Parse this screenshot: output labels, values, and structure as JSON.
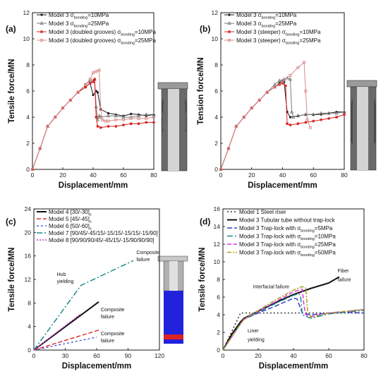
{
  "chart_data": [
    {
      "panel": "(a)",
      "type": "line",
      "xlabel": "Displacement/mm",
      "ylabel": "Tensile force/MN",
      "xlim": [
        0,
        80
      ],
      "ylim": [
        0,
        12
      ],
      "xticks": [
        0,
        20,
        40,
        60,
        80
      ],
      "yticks": [
        0,
        2,
        4,
        6,
        8,
        10,
        12
      ],
      "legend_position": "top-left",
      "series": [
        {
          "name": "Model 3 σbonding=10MPa",
          "legend": {
            "main": "Model 3 σ",
            "sub": "bonding",
            "tail": "=10MPa"
          },
          "color": "#1a1a1a",
          "marker": "dot",
          "x": [
            0,
            5,
            10,
            15,
            20,
            25,
            30,
            35,
            38,
            40,
            42,
            43,
            45,
            50,
            55,
            60,
            65,
            70,
            75,
            80
          ],
          "y": [
            0,
            1.6,
            3.3,
            4.0,
            4.7,
            5.3,
            5.9,
            6.3,
            6.6,
            5.7,
            6.0,
            5.9,
            4.6,
            4.3,
            4.2,
            4.1,
            4.25,
            4.2,
            4.1,
            4.2
          ]
        },
        {
          "name": "Model 3 σbonding=25MPa",
          "legend": {
            "main": "Model 3 σ",
            "sub": "bonding",
            "tail": "=25MPa"
          },
          "color": "#7a7a7a",
          "marker": "triangle",
          "x": [
            0,
            5,
            10,
            15,
            20,
            25,
            30,
            35,
            38,
            41,
            42,
            43,
            44,
            45,
            50,
            55,
            60,
            65,
            70,
            75,
            80
          ],
          "y": [
            0,
            1.6,
            3.3,
            4.0,
            4.7,
            5.3,
            5.9,
            6.5,
            6.8,
            6.9,
            4.8,
            3.8,
            4.1,
            4.0,
            4.1,
            4.1,
            4.0,
            4.0,
            4.1,
            4.2,
            4.2
          ]
        },
        {
          "name": "Model 3 (doubled grooves) σbonding=10MPa",
          "legend": {
            "main": "Model 3 (doubled grooves)  σ",
            "sub": "bonding",
            "tail": "=10MPa"
          },
          "color": "#d62020",
          "marker": "star",
          "x": [
            0,
            5,
            10,
            15,
            20,
            25,
            30,
            35,
            38,
            40,
            41,
            42,
            43,
            45,
            50,
            55,
            60,
            65,
            70,
            75,
            80
          ],
          "y": [
            0,
            1.6,
            3.3,
            4.0,
            4.7,
            5.3,
            5.9,
            6.3,
            6.6,
            6.7,
            6.9,
            4.0,
            3.3,
            3.2,
            3.3,
            3.3,
            3.4,
            3.5,
            3.5,
            3.6,
            3.6
          ]
        },
        {
          "name": "Model 3 (doubled grooves) σbonding=25MPa",
          "legend": {
            "main": "Model 3 (doubled grooves)  σ",
            "sub": "bonding",
            "tail": "=25MPa"
          },
          "color": "#d88a8a",
          "marker": "square",
          "x": [
            0,
            5,
            10,
            15,
            20,
            25,
            30,
            35,
            38,
            40,
            42,
            44,
            45,
            46,
            48,
            50,
            55,
            60,
            65,
            70,
            75,
            80
          ],
          "y": [
            0,
            1.6,
            3.3,
            4.0,
            4.7,
            5.3,
            5.9,
            6.5,
            6.9,
            7.4,
            7.5,
            7.6,
            4.6,
            3.8,
            3.7,
            3.7,
            3.8,
            3.8,
            3.9,
            3.9,
            3.9,
            4.0
          ]
        }
      ]
    },
    {
      "panel": "(b)",
      "type": "line",
      "xlabel": "Displacement/mm",
      "ylabel": "Tension force/MN",
      "xlim": [
        0,
        80
      ],
      "ylim": [
        0,
        12
      ],
      "xticks": [
        0,
        20,
        40,
        60,
        80
      ],
      "yticks": [
        0,
        2,
        4,
        6,
        8,
        10,
        12
      ],
      "legend_position": "top-left",
      "series": [
        {
          "name": "Model 3 σbonding=10MPa",
          "legend": {
            "main": "Model 3 σ",
            "sub": "bonding",
            "tail": "=10MPa"
          },
          "color": "#1a1a1a",
          "marker": "dot",
          "x": [
            0,
            5,
            10,
            15,
            20,
            25,
            30,
            35,
            38,
            40,
            41,
            43,
            45,
            50,
            55,
            60,
            65,
            70,
            75,
            80
          ],
          "y": [
            0,
            1.6,
            3.3,
            4.0,
            4.7,
            5.3,
            5.9,
            6.3,
            6.6,
            6.8,
            6.7,
            4.4,
            4.0,
            4.1,
            4.2,
            4.2,
            4.2,
            4.3,
            4.4,
            4.4
          ]
        },
        {
          "name": "Model 3 σbonding=25MPa",
          "legend": {
            "main": "Model 3 σ",
            "sub": "bonding",
            "tail": "=25MPa"
          },
          "color": "#7a7a7a",
          "marker": "triangle",
          "x": [
            0,
            5,
            10,
            15,
            20,
            25,
            30,
            35,
            38,
            41,
            43,
            45,
            46,
            47,
            50,
            55,
            60,
            65,
            70,
            75,
            80
          ],
          "y": [
            0,
            1.6,
            3.3,
            4.0,
            4.7,
            5.3,
            5.9,
            6.5,
            6.8,
            6.9,
            7.0,
            6.9,
            4.4,
            4.0,
            4.1,
            4.2,
            4.2,
            4.3,
            4.3,
            4.3,
            4.4
          ]
        },
        {
          "name": "Model 3 (steeper) σbonding=10MPa",
          "legend": {
            "main": "Model 3 (steeper)  σ",
            "sub": "bonding",
            "tail": "=10MPa"
          },
          "color": "#d62020",
          "marker": "star",
          "x": [
            0,
            5,
            10,
            15,
            20,
            25,
            30,
            35,
            38,
            40,
            42,
            43,
            45,
            50,
            55,
            60,
            65,
            70,
            75,
            80
          ],
          "y": [
            0,
            1.6,
            3.3,
            4.0,
            4.7,
            5.3,
            5.9,
            6.3,
            6.5,
            6.6,
            6.4,
            3.5,
            3.4,
            3.5,
            3.6,
            3.7,
            3.8,
            3.9,
            4.0,
            4.2
          ]
        },
        {
          "name": "Model 3 (steeper) σbonding=25MPa",
          "legend": {
            "main": "Model 3 (steeper)  σ",
            "sub": "bonding",
            "tail": "=25MPa"
          },
          "color": "#d88a8a",
          "marker": "square",
          "x": [
            0,
            5,
            10,
            15,
            20,
            25,
            30,
            35,
            40,
            45,
            50,
            54,
            55,
            56,
            58
          ],
          "y": [
            0,
            1.6,
            3.3,
            4.0,
            4.7,
            5.3,
            5.9,
            6.3,
            6.7,
            7.2,
            7.8,
            8.2,
            6.0,
            3.8,
            3.2
          ]
        }
      ]
    },
    {
      "panel": "(c)",
      "type": "line",
      "xlabel": "Displacement/mm",
      "ylabel": "Tensile force/MN",
      "xlim": [
        0,
        120
      ],
      "ylim": [
        0,
        24
      ],
      "xticks": [
        0,
        30,
        60,
        90,
        120
      ],
      "yticks": [
        0,
        4,
        8,
        12,
        16,
        20,
        24
      ],
      "legend_position": "top-left",
      "series": [
        {
          "name": "Model 4 [30/-30]s",
          "legend": {
            "main": "Model 4  [30/-30]",
            "sub": "s",
            "tail": ""
          },
          "color": "#111111",
          "dash": "",
          "width": 2,
          "x": [
            0,
            62
          ],
          "y": [
            0,
            8.2
          ]
        },
        {
          "name": "Model 5 [45/-45]s",
          "legend": {
            "main": "Model 5  [45/-45]",
            "sub": "s",
            "tail": ""
          },
          "color": "#e03030",
          "dash": "6,3",
          "width": 1.5,
          "x": [
            0,
            62
          ],
          "y": [
            0,
            3.4
          ]
        },
        {
          "name": "Model 6 [50/-60]s",
          "legend": {
            "main": "Model 6  [50/-60]",
            "sub": "s",
            "tail": ""
          },
          "color": "#3344cc",
          "dash": "3,3",
          "width": 1.2,
          "x": [
            0,
            60
          ],
          "y": [
            0,
            2.2
          ]
        },
        {
          "name": "Model 7 [90/45/-45/15/-15/15/-15/15/-15/90]",
          "legend": {
            "main": "Model 7  [90/45/-45/15/-15/15/-15/15/-15/90]",
            "sub": "",
            "tail": ""
          },
          "color": "#1b8a8a",
          "dash": "8,3,2,3",
          "width": 1.5,
          "x": [
            0,
            45,
            95
          ],
          "y": [
            0,
            11,
            15.2
          ]
        },
        {
          "name": "Model 8 [90/90/90/45/-45/15/-15/90/90/90]",
          "legend": {
            "main": "Model 8  [90/90/90/45/-45/15/-15/90/90/90]",
            "sub": "",
            "tail": ""
          },
          "color": "#cc33cc",
          "dash": "2,2",
          "width": 1.5,
          "x": [
            0,
            45
          ],
          "y": [
            0,
            6.2
          ]
        }
      ],
      "annotations": [
        {
          "text": "Hub",
          "x": 22,
          "y": 12.6
        },
        {
          "text": "yielding",
          "x": 22,
          "y": 11.4
        },
        {
          "text": "Composite",
          "x": 98,
          "y": 16.3
        },
        {
          "text": "failure",
          "x": 98,
          "y": 15.1
        },
        {
          "text": "Composite",
          "x": 64,
          "y": 6.6
        },
        {
          "text": "failure",
          "x": 64,
          "y": 5.4
        },
        {
          "text": "Composite",
          "x": 64,
          "y": 2.5
        },
        {
          "text": "failure",
          "x": 64,
          "y": 1.3
        }
      ]
    },
    {
      "panel": "(d)",
      "type": "line",
      "xlabel": "Displacement/mm",
      "ylabel": "Tensile force/MN",
      "xlim": [
        0,
        80
      ],
      "ylim": [
        0,
        16
      ],
      "xticks": [
        0,
        20,
        40,
        60,
        80
      ],
      "yticks": [
        0,
        2,
        4,
        6,
        8,
        10,
        12,
        14,
        16
      ],
      "legend_position": "top-left",
      "series": [
        {
          "name": "Model 1 Steel riser",
          "legend": {
            "main": "Model 1  Steel riser",
            "sub": "",
            "tail": ""
          },
          "color": "#333333",
          "dash": "2,3",
          "width": 1.5,
          "x": [
            0,
            10,
            20,
            30,
            40,
            50,
            60,
            70,
            80
          ],
          "y": [
            0,
            4.2,
            4.2,
            4.2,
            4.2,
            4.2,
            4.2,
            4.2,
            4.2
          ]
        },
        {
          "name": "Model 3 Tubular tube without trap-lock",
          "legend": {
            "main": "Model 3  Tubular tube without trap-lock",
            "sub": "",
            "tail": ""
          },
          "color": "#111111",
          "dash": "",
          "width": 2,
          "x": [
            0,
            5,
            10,
            12,
            20,
            30,
            40,
            50,
            60,
            66
          ],
          "y": [
            0,
            1.8,
            3.2,
            3.6,
            4.4,
            5.4,
            6.3,
            7.0,
            7.6,
            8.3
          ]
        },
        {
          "name": "Model 3 Trap-lock with σbonding=5MPa",
          "legend": {
            "main": "Model 3  Trap-lock with σ",
            "sub": "bonding",
            "tail": "=5MPa"
          },
          "color": "#3344cc",
          "dash": "7,3",
          "width": 1.5,
          "x": [
            0,
            10,
            12,
            20,
            30,
            38,
            40,
            42,
            45,
            50,
            60,
            70,
            80
          ],
          "y": [
            0,
            3.0,
            3.5,
            4.2,
            5.0,
            5.7,
            5.9,
            5.8,
            4.2,
            4.0,
            4.2,
            4.3,
            4.2
          ]
        },
        {
          "name": "Model 3 Trap-lock with σbonding=10MPa",
          "legend": {
            "main": "Model 3  Trap-lock with σ",
            "sub": "bonding",
            "tail": "=10MPa"
          },
          "color": "#1b8a8a",
          "dash": "8,3,2,3",
          "width": 1.5,
          "x": [
            0,
            10,
            12,
            20,
            30,
            40,
            43,
            44,
            45,
            50,
            60,
            70,
            80
          ],
          "y": [
            0,
            3.0,
            3.5,
            4.3,
            5.3,
            6.2,
            6.4,
            6.2,
            4.0,
            3.6,
            4.1,
            4.3,
            4.5
          ]
        },
        {
          "name": "Model 3 Trap-lock with σbonding=25MPa",
          "legend": {
            "main": "Model 3  Trap-lock with σ",
            "sub": "bonding",
            "tail": "=25MPa"
          },
          "color": "#e033e0",
          "dash": "6,3",
          "width": 1.5,
          "x": [
            0,
            10,
            12,
            20,
            30,
            40,
            45,
            46,
            47,
            50,
            60,
            70,
            80
          ],
          "y": [
            0,
            3.0,
            3.5,
            4.4,
            5.5,
            6.6,
            6.9,
            5.0,
            4.0,
            3.8,
            4.2,
            4.4,
            4.6
          ]
        },
        {
          "name": "Model 3 Trap-lock with σbonding=50MPa",
          "legend": {
            "main": "Model 3  Trap-lock with σ",
            "sub": "bonding",
            "tail": "=50MPa"
          },
          "color": "#a8a020",
          "dash": "6,2,2,2",
          "width": 1.5,
          "x": [
            0,
            10,
            12,
            20,
            30,
            40,
            45,
            47,
            48,
            50,
            60,
            70,
            80
          ],
          "y": [
            0,
            3.0,
            3.5,
            4.5,
            5.7,
            6.8,
            7.2,
            7.0,
            4.5,
            3.7,
            4.2,
            4.4,
            4.6
          ]
        }
      ],
      "annotations": [
        {
          "text": "Fiber",
          "x": 65,
          "y": 8.8
        },
        {
          "text": "failure",
          "x": 65,
          "y": 7.8
        },
        {
          "text": "Interfacial failure",
          "x": 17,
          "y": 7.0
        },
        {
          "text": "Liner",
          "x": 14,
          "y": 2.0
        },
        {
          "text": "yielding",
          "x": 14,
          "y": 1.0
        }
      ]
    }
  ]
}
